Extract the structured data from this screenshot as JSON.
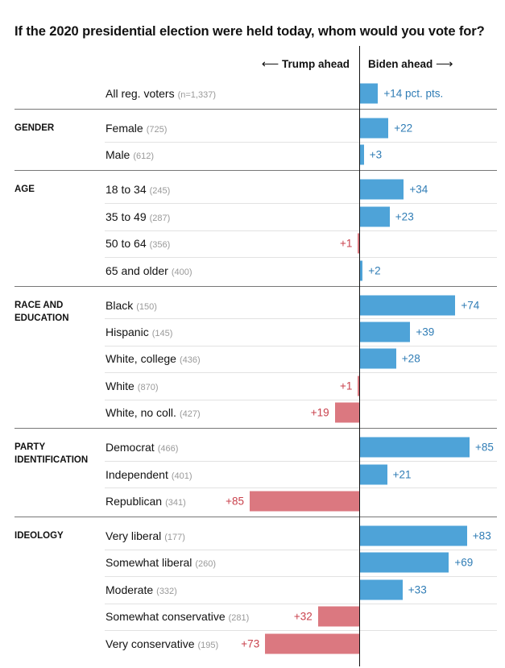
{
  "title": "If the 2020 presidential election were held today, whom would you vote for?",
  "direction_labels": {
    "trump": "Trump ahead",
    "biden": "Biden ahead",
    "left_arrow": "⟵",
    "right_arrow": "⟶"
  },
  "colors": {
    "biden_bar": "#4ea3d8",
    "trump_bar": "#db7880",
    "biden_text": "#2f7cb5",
    "trump_text": "#c9414c"
  },
  "chart_data": {
    "type": "bar",
    "orientation": "horizontal-diverging",
    "title": "If the 2020 presidential election were held today, whom would you vote for?",
    "rows": [
      {
        "group": "",
        "label": "All reg. voters",
        "n": "(n=1,337)",
        "leader": "biden",
        "margin": 14,
        "display": "+14 pct. pts."
      },
      {
        "group": "GENDER",
        "label": "Female",
        "n": "(725)",
        "leader": "biden",
        "margin": 22,
        "display": "+22"
      },
      {
        "group": "GENDER",
        "label": "Male",
        "n": "(612)",
        "leader": "biden",
        "margin": 3,
        "display": "+3"
      },
      {
        "group": "AGE",
        "label": "18 to 34",
        "n": "(245)",
        "leader": "biden",
        "margin": 34,
        "display": "+34"
      },
      {
        "group": "AGE",
        "label": "35 to 49",
        "n": "(287)",
        "leader": "biden",
        "margin": 23,
        "display": "+23"
      },
      {
        "group": "AGE",
        "label": "50 to 64",
        "n": "(356)",
        "leader": "trump",
        "margin": 1,
        "display": "+1"
      },
      {
        "group": "AGE",
        "label": "65 and older",
        "n": "(400)",
        "leader": "biden",
        "margin": 2,
        "display": "+2"
      },
      {
        "group": "RACE AND EDUCATION",
        "label": "Black",
        "n": "(150)",
        "leader": "biden",
        "margin": 74,
        "display": "+74"
      },
      {
        "group": "RACE AND EDUCATION",
        "label": "Hispanic",
        "n": "(145)",
        "leader": "biden",
        "margin": 39,
        "display": "+39"
      },
      {
        "group": "RACE AND EDUCATION",
        "label": "White, college",
        "n": "(436)",
        "leader": "biden",
        "margin": 28,
        "display": "+28"
      },
      {
        "group": "RACE AND EDUCATION",
        "label": "White",
        "n": "(870)",
        "leader": "trump",
        "margin": 1,
        "display": "+1"
      },
      {
        "group": "RACE AND EDUCATION",
        "label": "White, no coll.",
        "n": "(427)",
        "leader": "trump",
        "margin": 19,
        "display": "+19"
      },
      {
        "group": "PARTY IDENTIFICATION",
        "label": "Democrat",
        "n": "(466)",
        "leader": "biden",
        "margin": 85,
        "display": "+85"
      },
      {
        "group": "PARTY IDENTIFICATION",
        "label": "Independent",
        "n": "(401)",
        "leader": "biden",
        "margin": 21,
        "display": "+21"
      },
      {
        "group": "PARTY IDENTIFICATION",
        "label": "Republican",
        "n": "(341)",
        "leader": "trump",
        "margin": 85,
        "display": "+85"
      },
      {
        "group": "IDEOLOGY",
        "label": "Very liberal",
        "n": "(177)",
        "leader": "biden",
        "margin": 83,
        "display": "+83"
      },
      {
        "group": "IDEOLOGY",
        "label": "Somewhat liberal",
        "n": "(260)",
        "leader": "biden",
        "margin": 69,
        "display": "+69"
      },
      {
        "group": "IDEOLOGY",
        "label": "Moderate",
        "n": "(332)",
        "leader": "biden",
        "margin": 33,
        "display": "+33"
      },
      {
        "group": "IDEOLOGY",
        "label": "Somewhat conservative",
        "n": "(281)",
        "leader": "trump",
        "margin": 32,
        "display": "+32"
      },
      {
        "group": "IDEOLOGY",
        "label": "Very conservative",
        "n": "(195)",
        "leader": "trump",
        "margin": 73,
        "display": "+73"
      }
    ],
    "groups": [
      {
        "key": "GENDER",
        "label": "GENDER"
      },
      {
        "key": "AGE",
        "label": "AGE"
      },
      {
        "key": "RACE AND EDUCATION",
        "label": "RACE AND\nEDUCATION"
      },
      {
        "key": "PARTY IDENTIFICATION",
        "label": "PARTY\nIDENTIFICATION"
      },
      {
        "key": "IDEOLOGY",
        "label": "IDEOLOGY"
      }
    ]
  }
}
